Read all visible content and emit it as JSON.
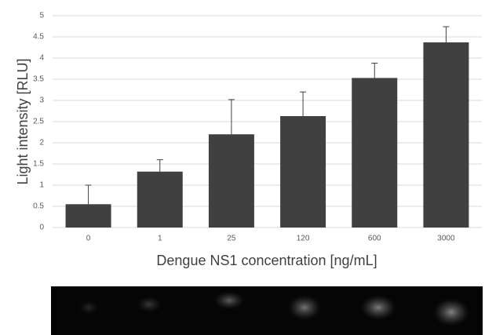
{
  "chart_data": {
    "type": "bar",
    "x_label": "Dengue NS1 concentration [ng/mL]",
    "y_label": "Light intensity [RLU]",
    "categories": [
      "0",
      "1",
      "25",
      "120",
      "600",
      "3000"
    ],
    "values": [
      0.55,
      1.32,
      2.2,
      2.63,
      3.53,
      4.37
    ],
    "errors": [
      0.45,
      0.28,
      0.82,
      0.57,
      0.35,
      0.37
    ],
    "color": "#404040",
    "ylim": [
      0,
      5
    ],
    "yticks": [
      0,
      0.5,
      1,
      1.5,
      2,
      2.5,
      3,
      3.5,
      4,
      4.5,
      5
    ],
    "grid": true
  }
}
